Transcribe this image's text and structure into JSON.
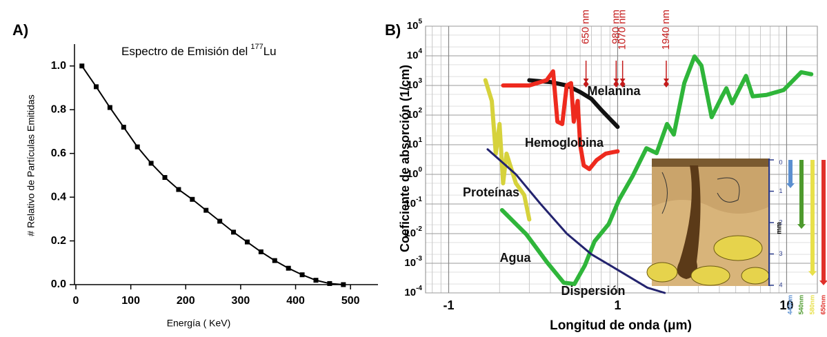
{
  "chart_data": [
    {
      "type": "line",
      "panel": "A)",
      "title": "Espectro de Emisión del",
      "title_sup": "177",
      "title_end": "Lu",
      "xlabel": "Energía  ( KeV)",
      "ylabel": "# Relativo de Partículas Emitidas",
      "color": "#000000",
      "marker": "square",
      "x": [
        11,
        37,
        62,
        87,
        112,
        137,
        162,
        187,
        212,
        237,
        262,
        287,
        312,
        337,
        362,
        387,
        412,
        437,
        462,
        487
      ],
      "values": [
        1.0,
        0.905,
        0.81,
        0.72,
        0.63,
        0.555,
        0.49,
        0.435,
        0.39,
        0.34,
        0.29,
        0.24,
        0.195,
        0.15,
        0.11,
        0.075,
        0.045,
        0.02,
        0.005,
        0.0
      ],
      "xlim": [
        0,
        550
      ],
      "ylim": [
        0,
        1.1
      ],
      "xticks": [
        0,
        100,
        200,
        300,
        400,
        500
      ],
      "yticks": [
        {
          "value": 0,
          "label": "0.0"
        },
        {
          "value": 0.2,
          "label": "0.2"
        },
        {
          "value": 0.4,
          "label": "0.4"
        },
        {
          "value": 0.6,
          "label": "0.6"
        },
        {
          "value": 0.8,
          "label": "0.8"
        },
        {
          "value": 1.0,
          "label": "1.0"
        }
      ]
    },
    {
      "type": "line",
      "panel": "B)",
      "log_x": true,
      "log_y": true,
      "grid": true,
      "xlabel": "Longitud de onda (μm)",
      "ylabel": "Coeficiente de absorción (1/cm)",
      "xlim": [
        0.073,
        15.2
      ],
      "ylim": [
        0.0001,
        100000
      ],
      "xticks": [
        {
          "value": 0.1,
          "label": "-1"
        },
        1,
        10
      ],
      "yticks": [
        {
          "value": 100000,
          "label": "10",
          "sup": "5"
        },
        {
          "value": 10000,
          "label": "10",
          "sup": "4"
        },
        {
          "value": 1000,
          "label": "10",
          "sup": "3"
        },
        {
          "value": 100,
          "label": "10",
          "sup": "2"
        },
        {
          "value": 10,
          "label": "10",
          "sup": "1"
        },
        {
          "value": 1,
          "label": "10",
          "sup": "0"
        },
        {
          "value": 0.1,
          "label": "10",
          "sup": "-1"
        },
        {
          "value": 0.01,
          "label": "10",
          "sup": "-2"
        },
        {
          "value": 0.001,
          "label": "10",
          "sup": "-3"
        },
        {
          "value": 0.0001,
          "label": "10",
          "sup": "-4"
        }
      ],
      "series": [
        {
          "name": "Melanina",
          "color": "#111111",
          "x": [
            0.3,
            0.4,
            0.5,
            0.6,
            0.7,
            0.8,
            1.0
          ],
          "values": [
            1500,
            1300,
            1000,
            600,
            350,
            150,
            40
          ]
        },
        {
          "name": "Hemoglobina",
          "color": "#ee2a1e",
          "x": [
            0.21,
            0.3,
            0.38,
            0.415,
            0.44,
            0.47,
            0.5,
            0.53,
            0.55,
            0.58,
            0.6,
            0.63,
            0.68,
            0.75,
            0.85,
            1.0
          ],
          "values": [
            1000,
            1000,
            1500,
            3000,
            60,
            50,
            1000,
            1200,
            60,
            300,
            10,
            2,
            1.5,
            3,
            5,
            6
          ]
        },
        {
          "name": "Proteínas",
          "color": "#d6d23c",
          "x": [
            0.165,
            0.18,
            0.19,
            0.2,
            0.21,
            0.22,
            0.25,
            0.28,
            0.3
          ],
          "values": [
            1500,
            300,
            5,
            50,
            0.5,
            5,
            0.5,
            0.2,
            0.03
          ]
        },
        {
          "name": "Agua",
          "color": "#2fb53a",
          "x": [
            0.207,
            0.288,
            0.381,
            0.48,
            0.555,
            0.64,
            0.73,
            0.885,
            1.02,
            1.23,
            1.48,
            1.7,
            1.96,
            2.15,
            2.48,
            2.85,
            3.13,
            3.6,
            4.15,
            4.4,
            4.76,
            5.75,
            6.3,
            7.6,
            9.6,
            12.2,
            14
          ],
          "values": [
            0.062,
            0.0095,
            0.0011,
            0.00022,
            0.0002,
            0.00085,
            0.0055,
            0.021,
            0.14,
            0.9,
            7.6,
            5.2,
            50,
            22,
            1200,
            9500,
            4700,
            85,
            430,
            800,
            250,
            2100,
            430,
            480,
            700,
            2800,
            2400
          ]
        },
        {
          "name": "Dispersión",
          "color": "#23236e",
          "x": [
            0.17,
            0.25,
            0.35,
            0.5,
            0.7,
            1.0,
            1.5,
            1.9
          ],
          "values": [
            7,
            1,
            0.1,
            0.01,
            0.002,
            0.0006,
            0.00015,
            0.0001
          ]
        }
      ],
      "annotations": [
        {
          "label": "650 nm",
          "x": 0.65
        },
        {
          "label": "980 nm",
          "x": 0.98
        },
        {
          "label": "1070 nm",
          "x": 1.07
        },
        {
          "label": "1940 nm",
          "x": 1.94
        }
      ],
      "inset": {
        "ylim": [
          0,
          4
        ],
        "yticks": [
          0,
          1,
          2,
          3,
          4
        ],
        "ylabel": "mm",
        "bands": [
          {
            "label": "440nm",
            "color": "#5b8fd0",
            "depth": 0.9
          },
          {
            "label": "540nm",
            "color": "#4e9a2e",
            "depth": 2.2
          },
          {
            "label": "580nm",
            "color": "#e8e04a",
            "depth": 3.7
          },
          {
            "label": "650nm",
            "color": "#e0302a",
            "depth": 4
          }
        ]
      }
    }
  ]
}
